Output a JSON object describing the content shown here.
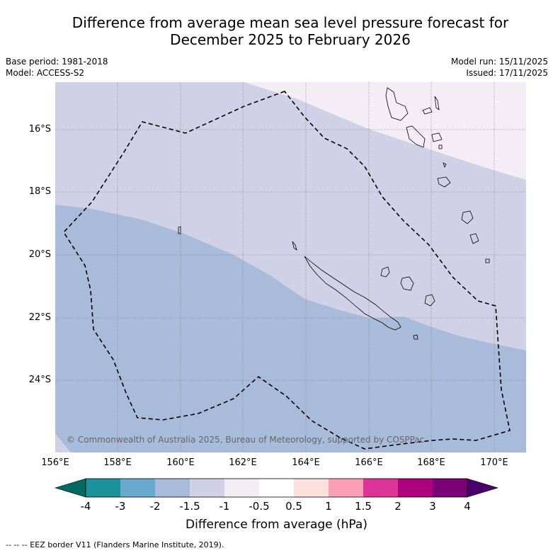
{
  "title": {
    "line1": "Difference from average mean sea level pressure forecast for",
    "line2": "December 2025 to February 2026"
  },
  "info": {
    "base_period": "Base period: 1981-2018",
    "model": "Model: ACCESS-S2",
    "model_run": "Model run: 15/11/2025",
    "issued": "Issued: 17/11/2025"
  },
  "map": {
    "lat_labels": [
      "16°S",
      "18°S",
      "20°S",
      "22°S",
      "24°S"
    ],
    "lon_labels": [
      "156°E",
      "158°E",
      "160°E",
      "162°E",
      "164°E",
      "166°E",
      "168°E",
      "170°E"
    ],
    "copyright": "© Commonwealth of Australia 2025, Bureau of Meteorology, supported by COSPPac",
    "colors": {
      "class_minus2_to_minus1_5": "#a8bbdb",
      "class_minus1_5_to_minus1": "#d0d1e6",
      "class_minus1_to_minus0_5": "#f4edf6"
    }
  },
  "colorbar": {
    "tick_labels": [
      "-4",
      "-3",
      "-2",
      "-1.5",
      "-1",
      "-0.5",
      "0.5",
      "1",
      "1.5",
      "2",
      "3",
      "4"
    ],
    "colors": [
      "#006a60",
      "#1b9199",
      "#67a9cf",
      "#a8bbdb",
      "#d0d1e6",
      "#f4edf6",
      "#ffffff",
      "#fde0dd",
      "#fa9fb5",
      "#dd3497",
      "#ae017e",
      "#7a0177",
      "#49006a"
    ],
    "label": "Difference from average (hPa)"
  },
  "legend": {
    "eez": "--  --  -- EEZ border V11 (Flanders Marine Institute, 2019)."
  }
}
